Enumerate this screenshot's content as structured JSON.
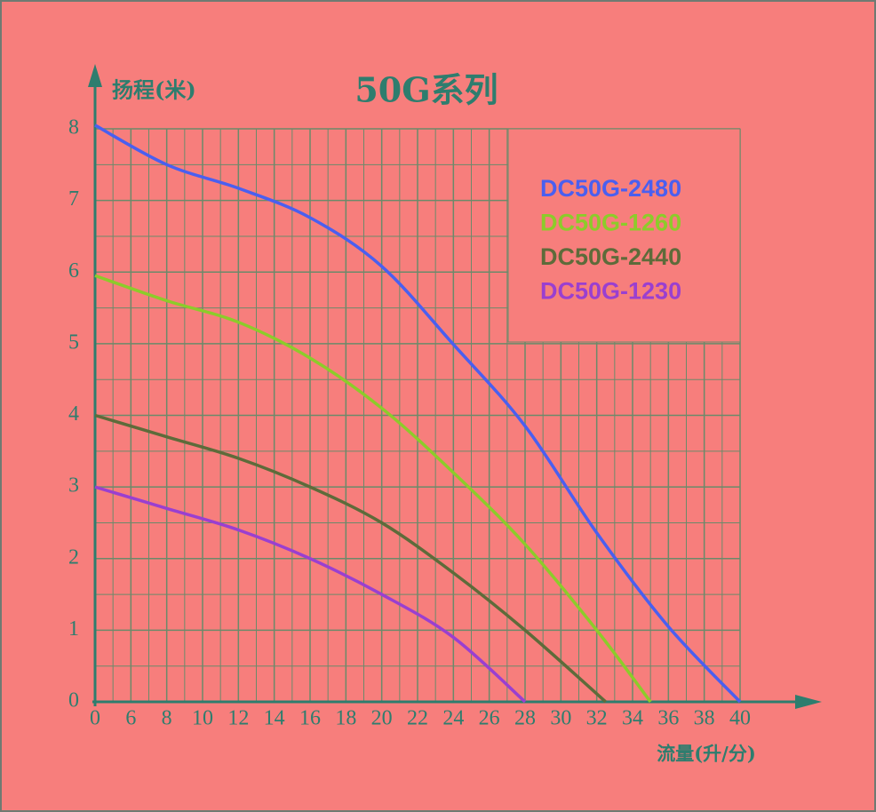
{
  "chart_data": {
    "type": "line",
    "title": "50G系列",
    "y_label": "扬程(米)",
    "x_label": "流量(升/分)",
    "ylim": [
      0,
      8
    ],
    "yticks": [
      0,
      1,
      2,
      3,
      4,
      5,
      6,
      7,
      8
    ],
    "xlim": [
      0,
      40
    ],
    "xticks": [
      0,
      6,
      8,
      10,
      12,
      14,
      16,
      18,
      20,
      22,
      24,
      26,
      28,
      30,
      32,
      34,
      36,
      38,
      40
    ],
    "grid": true,
    "legend": "upper right",
    "series": [
      {
        "name": "DC50G-2480",
        "color": "#4a5ff0",
        "x": [
          0,
          8,
          12,
          16,
          20,
          24,
          28,
          32,
          36,
          40
        ],
        "values": [
          8.05,
          7.5,
          7.17,
          6.76,
          6.08,
          4.99,
          3.85,
          2.36,
          1.05,
          0
        ]
      },
      {
        "name": "DC50G-1260",
        "color": "#8ccc2a",
        "x": [
          0,
          8,
          12,
          16,
          20,
          24,
          28,
          32,
          35
        ],
        "values": [
          5.95,
          5.6,
          5.3,
          4.8,
          4.1,
          3.2,
          2.2,
          1.0,
          0
        ]
      },
      {
        "name": "DC50G-2440",
        "color": "#5e6b3a",
        "x": [
          0,
          8,
          12,
          16,
          20,
          24,
          28,
          32.5
        ],
        "values": [
          4.0,
          3.7,
          3.4,
          3.0,
          2.5,
          1.8,
          1.0,
          0
        ]
      },
      {
        "name": "DC50G-1230",
        "color": "#9a3fd0",
        "x": [
          0,
          8,
          12,
          16,
          20,
          24,
          28
        ],
        "values": [
          3.0,
          2.7,
          2.4,
          2.0,
          1.5,
          0.9,
          0
        ]
      }
    ]
  }
}
